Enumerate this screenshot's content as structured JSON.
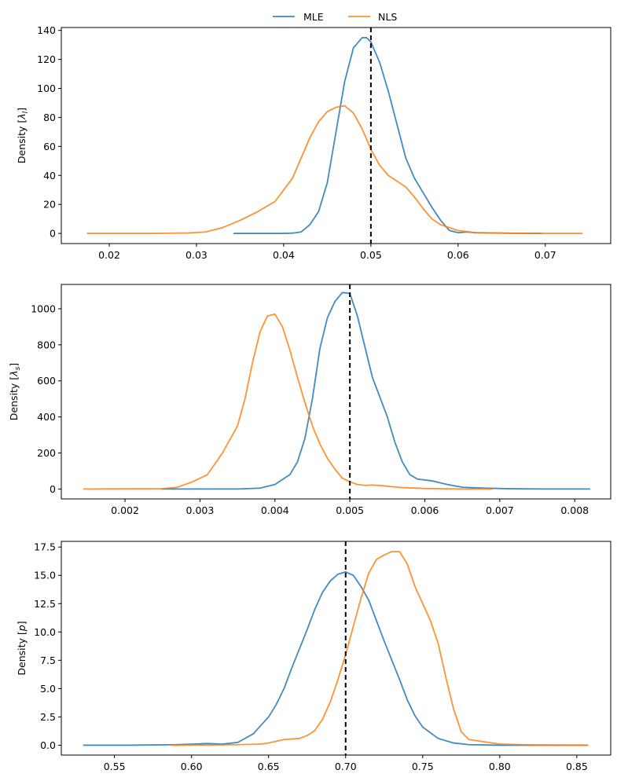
{
  "legend": {
    "entries": [
      {
        "name": "MLE",
        "color": "#1f77b4"
      },
      {
        "name": "NLS",
        "color": "#ff7f0e"
      }
    ]
  },
  "chart_data": [
    {
      "type": "line",
      "ylabel": "Density [λ_l]",
      "ylabel_main": "Density [",
      "ylabel_var": "λ",
      "ylabel_sub": "l",
      "ylabel_end": "]",
      "xlim": [
        0.0145,
        0.0775
      ],
      "ylim": [
        -7,
        142
      ],
      "xticks": [
        0.02,
        0.03,
        0.04,
        0.05,
        0.06,
        0.07
      ],
      "xtick_labels": [
        "0.02",
        "0.03",
        "0.04",
        "0.05",
        "0.06",
        "0.07"
      ],
      "yticks": [
        0,
        20,
        40,
        60,
        80,
        100,
        120,
        140
      ],
      "ytick_labels": [
        "0",
        "20",
        "40",
        "60",
        "80",
        "100",
        "120",
        "140"
      ],
      "reference_x": 0.05,
      "series": [
        {
          "name": "MLE",
          "color": "#1f77b4",
          "x": [
            0.0343,
            0.036,
            0.038,
            0.04,
            0.041,
            0.042,
            0.043,
            0.044,
            0.045,
            0.046,
            0.047,
            0.048,
            0.049,
            0.0495,
            0.05,
            0.051,
            0.052,
            0.053,
            0.054,
            0.055,
            0.056,
            0.057,
            0.058,
            0.059,
            0.06,
            0.061,
            0.062,
            0.064,
            0.066,
            0.0695
          ],
          "y": [
            0,
            0,
            0,
            0,
            0.2,
            1,
            6,
            15,
            35,
            70,
            105,
            128,
            135,
            135,
            132,
            118,
            98,
            75,
            52,
            38,
            28,
            18,
            9,
            2,
            0.5,
            1,
            0.5,
            0.3,
            0.1,
            0
          ]
        },
        {
          "name": "NLS",
          "color": "#ff7f0e",
          "x": [
            0.0175,
            0.025,
            0.029,
            0.031,
            0.033,
            0.035,
            0.037,
            0.039,
            0.041,
            0.042,
            0.043,
            0.044,
            0.045,
            0.046,
            0.047,
            0.048,
            0.049,
            0.05,
            0.051,
            0.052,
            0.053,
            0.054,
            0.055,
            0.056,
            0.057,
            0.058,
            0.06,
            0.062,
            0.065,
            0.07,
            0.0742
          ],
          "y": [
            0,
            0,
            0.3,
            1,
            4,
            9,
            15,
            22,
            38,
            52,
            66,
            77,
            84,
            87,
            88,
            83,
            72,
            58,
            47,
            40,
            36,
            32,
            25,
            17,
            10,
            6,
            2,
            0.5,
            0.2,
            0,
            0
          ]
        }
      ]
    },
    {
      "type": "line",
      "ylabel": "Density [λ_s]",
      "ylabel_main": "Density [",
      "ylabel_var": "λ",
      "ylabel_sub": "s",
      "ylabel_end": "]",
      "xlim": [
        0.00115,
        0.00848
      ],
      "ylim": [
        -55,
        1135
      ],
      "xticks": [
        0.002,
        0.003,
        0.004,
        0.005,
        0.006,
        0.007,
        0.008
      ],
      "xtick_labels": [
        "0.002",
        "0.003",
        "0.004",
        "0.005",
        "0.006",
        "0.007",
        "0.008"
      ],
      "yticks": [
        0,
        200,
        400,
        600,
        800,
        1000
      ],
      "ytick_labels": [
        "0",
        "200",
        "400",
        "600",
        "800",
        "1000"
      ],
      "reference_x": 0.005,
      "series": [
        {
          "name": "MLE",
          "color": "#1f77b4",
          "x": [
            0.0025,
            0.003,
            0.0035,
            0.0038,
            0.004,
            0.0042,
            0.0043,
            0.0044,
            0.0045,
            0.0046,
            0.0047,
            0.0048,
            0.0049,
            0.005,
            0.0051,
            0.0052,
            0.0053,
            0.0054,
            0.0055,
            0.0056,
            0.0057,
            0.0058,
            0.0059,
            0.006,
            0.0061,
            0.0062,
            0.0063,
            0.0065,
            0.0068,
            0.0071,
            0.0076,
            0.0082
          ],
          "y": [
            0,
            0,
            0,
            5,
            25,
            80,
            150,
            280,
            500,
            780,
            950,
            1040,
            1090,
            1085,
            960,
            790,
            620,
            510,
            400,
            260,
            150,
            80,
            55,
            50,
            45,
            35,
            25,
            10,
            5,
            2,
            0,
            0
          ]
        },
        {
          "name": "NLS",
          "color": "#ff7f0e",
          "x": [
            0.00145,
            0.0025,
            0.0027,
            0.0029,
            0.0031,
            0.0033,
            0.0035,
            0.0036,
            0.0037,
            0.0038,
            0.0039,
            0.004,
            0.0041,
            0.0042,
            0.0043,
            0.0044,
            0.0045,
            0.0046,
            0.0047,
            0.0048,
            0.0049,
            0.005,
            0.0051,
            0.0052,
            0.0053,
            0.0054,
            0.0055,
            0.0057,
            0.006,
            0.0065,
            0.0069
          ],
          "y": [
            0,
            2,
            10,
            40,
            80,
            200,
            350,
            500,
            700,
            870,
            960,
            970,
            900,
            770,
            620,
            480,
            350,
            250,
            170,
            110,
            60,
            40,
            25,
            20,
            22,
            20,
            15,
            8,
            3,
            0,
            0
          ]
        }
      ]
    },
    {
      "type": "line",
      "ylabel": "Density [p]",
      "ylabel_main": "Density [",
      "ylabel_var": "p",
      "ylabel_sub": "",
      "ylabel_end": "]",
      "xlim": [
        0.5155,
        0.872
      ],
      "ylim": [
        -0.87,
        18.0
      ],
      "xticks": [
        0.55,
        0.6,
        0.65,
        0.7,
        0.75,
        0.8,
        0.85
      ],
      "xtick_labels": [
        "0.55",
        "0.60",
        "0.65",
        "0.70",
        "0.75",
        "0.80",
        "0.85"
      ],
      "yticks": [
        0,
        2.5,
        5,
        7.5,
        10,
        12.5,
        15,
        17.5
      ],
      "ytick_labels": [
        "0.0",
        "2.5",
        "5.0",
        "7.5",
        "10.0",
        "12.5",
        "15.0",
        "17.5"
      ],
      "reference_x": 0.7,
      "series": [
        {
          "name": "MLE",
          "color": "#1f77b4",
          "x": [
            0.53,
            0.56,
            0.59,
            0.605,
            0.61,
            0.62,
            0.63,
            0.64,
            0.65,
            0.655,
            0.66,
            0.665,
            0.67,
            0.675,
            0.68,
            0.685,
            0.69,
            0.695,
            0.7,
            0.705,
            0.71,
            0.715,
            0.72,
            0.725,
            0.73,
            0.735,
            0.74,
            0.745,
            0.75,
            0.76,
            0.77,
            0.78,
            0.8,
            0.83,
            0.857
          ],
          "y": [
            0,
            0,
            0.05,
            0.12,
            0.15,
            0.1,
            0.25,
            1.0,
            2.5,
            3.6,
            5.0,
            6.8,
            8.5,
            10.2,
            12.0,
            13.5,
            14.5,
            15.1,
            15.3,
            15.0,
            14.0,
            12.8,
            11.0,
            9.2,
            7.5,
            5.8,
            4.0,
            2.6,
            1.6,
            0.6,
            0.2,
            0.05,
            0,
            0,
            0
          ]
        },
        {
          "name": "NLS",
          "color": "#ff7f0e",
          "x": [
            0.587,
            0.61,
            0.63,
            0.645,
            0.65,
            0.655,
            0.66,
            0.67,
            0.675,
            0.68,
            0.685,
            0.69,
            0.695,
            0.7,
            0.705,
            0.71,
            0.715,
            0.72,
            0.725,
            0.73,
            0.735,
            0.74,
            0.745,
            0.75,
            0.755,
            0.76,
            0.765,
            0.77,
            0.775,
            0.78,
            0.79,
            0.8,
            0.82,
            0.857
          ],
          "y": [
            0,
            0.02,
            0.05,
            0.1,
            0.2,
            0.35,
            0.5,
            0.6,
            0.85,
            1.3,
            2.3,
            3.8,
            5.8,
            8.0,
            10.5,
            13.0,
            15.2,
            16.4,
            16.8,
            17.1,
            17.1,
            16.0,
            14.0,
            12.5,
            11.0,
            9.0,
            6.0,
            3.2,
            1.2,
            0.5,
            0.3,
            0.1,
            0.03,
            0
          ]
        }
      ]
    }
  ]
}
